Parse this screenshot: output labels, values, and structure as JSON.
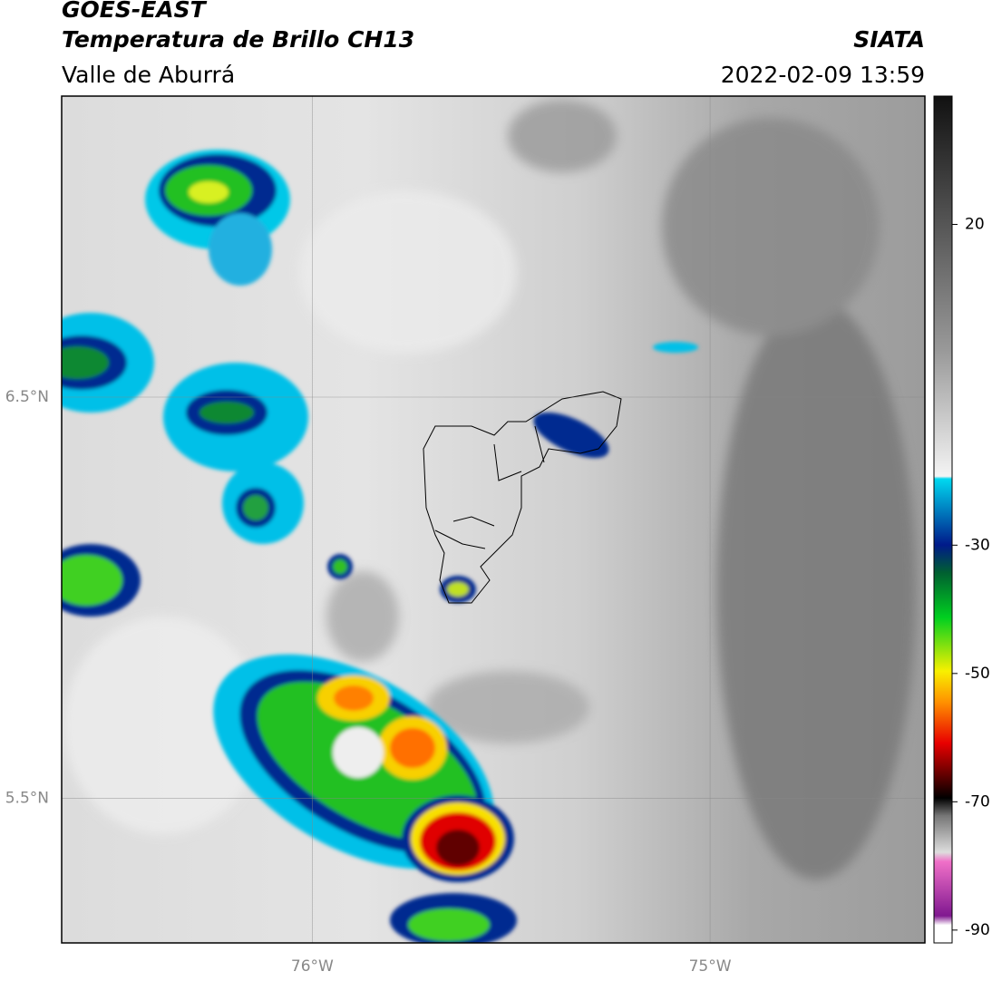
{
  "header": {
    "title": "GOES-EAST",
    "subtitle": "Temperatura de Brillo CH13",
    "region": "Valle de Aburrá",
    "source": "SIATA",
    "datetime": "2022-02-09 13:59"
  },
  "map": {
    "xlim": [
      -76.63,
      -74.46
    ],
    "ylim": [
      5.14,
      7.25
    ],
    "xticks": [
      {
        "value": -76,
        "label": "76°W"
      },
      {
        "value": -75,
        "label": "75°W"
      }
    ],
    "yticks": [
      {
        "value": 6.5,
        "label": "6.5°N"
      },
      {
        "value": 5.5,
        "label": "5.5°N"
      }
    ],
    "grid": true
  },
  "colorbar": {
    "lim": [
      -92,
      40
    ],
    "ticks": [
      20,
      -30,
      -50,
      -70,
      -90
    ]
  }
}
